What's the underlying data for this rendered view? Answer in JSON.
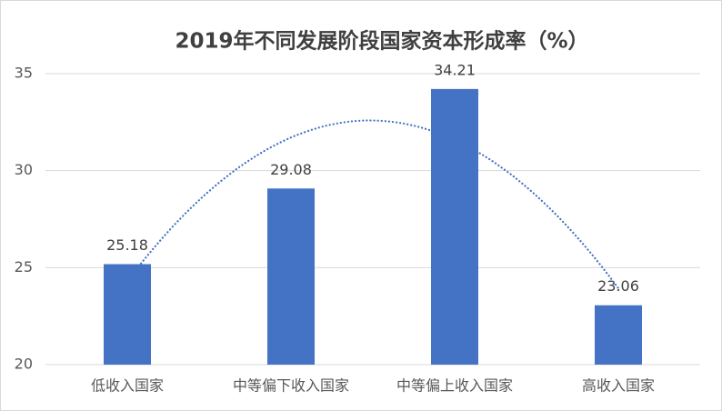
{
  "chart_data": {
    "type": "bar",
    "title": "2019年不同发展阶段国家资本形成率（%）",
    "categories": [
      "低收入国家",
      "中等偏下收入国家",
      "中等偏上收入国家",
      "高收入国家"
    ],
    "values": [
      25.18,
      29.08,
      34.21,
      23.06
    ],
    "color": "#4472c4",
    "ylim": [
      20,
      35
    ],
    "yticks": [
      20,
      25,
      30,
      35
    ],
    "grid": true,
    "trendline": "polynomial"
  }
}
